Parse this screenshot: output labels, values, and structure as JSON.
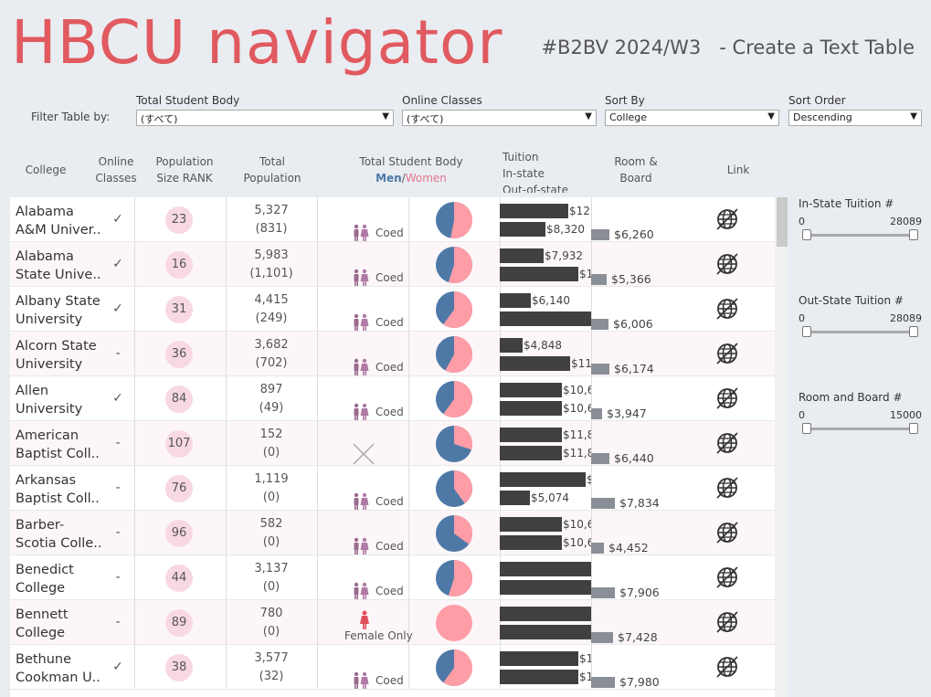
{
  "header": {
    "title": "HBCU navigator",
    "subtitle": "#B2BV 2024/W3   - Create a Text Table"
  },
  "filters": {
    "label": "Filter Table by:",
    "items": [
      {
        "label": "Total Student Body",
        "value": "(すべて)"
      },
      {
        "label": "Online Classes",
        "value": "(すべて)"
      },
      {
        "label": "Sort By",
        "value": "College"
      },
      {
        "label": "Sort Order",
        "value": "Descending"
      }
    ]
  },
  "columns": {
    "college": "College",
    "online_1": "Online",
    "online_2": "Classes",
    "rank_1": "Population",
    "rank_2": "Size RANK",
    "pop_1": "Total",
    "pop_2": "Population",
    "body": "Total Student Body",
    "men": "Men",
    "slash": "/",
    "women": "Women",
    "tuition_1": "Tuition",
    "tuition_2": "In-state",
    "tuition_3": "Out-of-state",
    "room_1": "Room &",
    "room_2": "Board",
    "link": "Link"
  },
  "rows": [
    {
      "name1": "Alabama",
      "name2": "A&M Univer..",
      "online": "✓",
      "rank": "23",
      "pop": "5,327",
      "sub": "(831)",
      "gender": "Coed",
      "women_share": 0.53,
      "in_label": "$12",
      "in_frac": 0.75,
      "out_label": "$8,320",
      "out_frac": 0.5,
      "room": "$6,260",
      "room_frac": 0.4
    },
    {
      "name1": "Alabama",
      "name2": "State Unive..",
      "online": "✓",
      "rank": "16",
      "pop": "5,983",
      "sub": "(1,101)",
      "gender": "Coed",
      "women_share": 0.55,
      "in_label": "$7,932",
      "in_frac": 0.48,
      "out_label": "$1",
      "out_frac": 0.86,
      "room": "$5,366",
      "room_frac": 0.34
    },
    {
      "name1": "Albany State",
      "name2": "University",
      "online": "✓",
      "rank": "31",
      "pop": "4,415",
      "sub": "(249)",
      "gender": "Coed",
      "women_share": 0.6,
      "in_label": "$6,140",
      "in_frac": 0.34,
      "out_label": "",
      "out_frac": 1.0,
      "room": "$6,006",
      "room_frac": 0.38
    },
    {
      "name1": "Alcorn State",
      "name2": "University",
      "online": "-",
      "rank": "36",
      "pop": "3,682",
      "sub": "(702)",
      "gender": "Coed",
      "women_share": 0.58,
      "in_label": "$4,848",
      "in_frac": 0.25,
      "out_label": "$11,",
      "out_frac": 0.77,
      "room": "$6,174",
      "room_frac": 0.4
    },
    {
      "name1": "Allen",
      "name2": "University",
      "online": "✓",
      "rank": "84",
      "pop": "897",
      "sub": "(49)",
      "gender": "Coed",
      "women_share": 0.6,
      "in_label": "$10,6",
      "in_frac": 0.68,
      "out_label": "$10,6",
      "out_frac": 0.68,
      "room": "$3,947",
      "room_frac": 0.24
    },
    {
      "name1": "American",
      "name2": "Baptist Coll..",
      "online": "-",
      "rank": "107",
      "pop": "152",
      "sub": "(0)",
      "gender": "",
      "women_share": 0.3,
      "in_label": "$11,8",
      "in_frac": 0.68,
      "out_label": "$11,8",
      "out_frac": 0.68,
      "room": "$6,440",
      "room_frac": 0.4
    },
    {
      "name1": "Arkansas",
      "name2": "Baptist Coll..",
      "online": "-",
      "rank": "76",
      "pop": "1,119",
      "sub": "(0)",
      "gender": "Coed",
      "women_share": 0.4,
      "in_label": "$",
      "in_frac": 0.94,
      "out_label": "$5,074",
      "out_frac": 0.33,
      "room": "$7,834",
      "room_frac": 0.52
    },
    {
      "name1": "Barber-",
      "name2": "Scotia Colle..",
      "online": "-",
      "rank": "96",
      "pop": "582",
      "sub": "(0)",
      "gender": "Coed",
      "women_share": 0.35,
      "in_label": "$10,6",
      "in_frac": 0.68,
      "out_label": "$10,6",
      "out_frac": 0.68,
      "room": "$4,452",
      "room_frac": 0.28
    },
    {
      "name1": "Benedict",
      "name2": "College",
      "online": "-",
      "rank": "44",
      "pop": "3,137",
      "sub": "(0)",
      "gender": "Coed",
      "women_share": 0.55,
      "in_label": "",
      "in_frac": 1.0,
      "out_label": "",
      "out_frac": 1.0,
      "room": "$7,906",
      "room_frac": 0.52
    },
    {
      "name1": "Bennett",
      "name2": "College",
      "online": "-",
      "rank": "89",
      "pop": "780",
      "sub": "(0)",
      "gender": "Female Only",
      "women_share": 1.0,
      "in_label": "",
      "in_frac": 1.0,
      "out_label": "",
      "out_frac": 1.0,
      "room": "$7,428",
      "room_frac": 0.48
    },
    {
      "name1": "Bethune",
      "name2": "Cookman U..",
      "online": "✓",
      "rank": "38",
      "pop": "3,577",
      "sub": "(32)",
      "gender": "Coed",
      "women_share": 0.6,
      "in_label": "$1",
      "in_frac": 0.86,
      "out_label": "$1",
      "out_frac": 0.86,
      "room": "$7,980",
      "room_frac": 0.52
    }
  ],
  "sliders": [
    {
      "label": "In-State Tuition #",
      "min": "0",
      "max": "28089"
    },
    {
      "label": "Out-State Tuition #",
      "min": "0",
      "max": "28089"
    },
    {
      "label": "Room and Board #",
      "min": "0",
      "max": "15000"
    }
  ],
  "colors": {
    "men": "#4e79a7",
    "women": "#ff9da7",
    "accent": "#e05a5f",
    "bar": "#404040",
    "room_bar": "#8a8f97"
  }
}
